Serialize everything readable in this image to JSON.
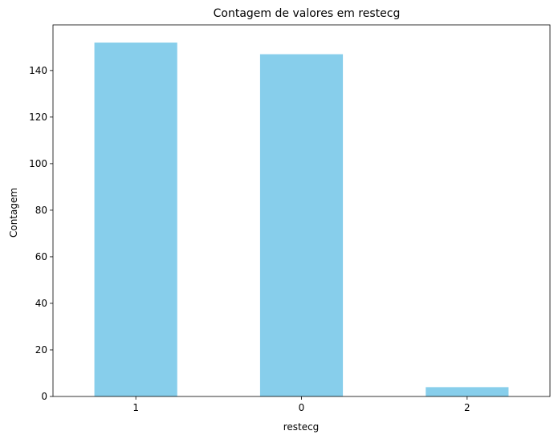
{
  "chart_data": {
    "type": "bar",
    "title": "Contagem de valores em restecg",
    "xlabel": "restecg",
    "ylabel": "Contagem",
    "categories": [
      "1",
      "0",
      "2"
    ],
    "values": [
      152,
      147,
      4
    ],
    "ylim": [
      0,
      159.6
    ],
    "yticks": [
      0,
      20,
      40,
      60,
      80,
      100,
      120,
      140
    ],
    "bar_color": "#87CEEB",
    "grid": false,
    "legend": "none"
  }
}
